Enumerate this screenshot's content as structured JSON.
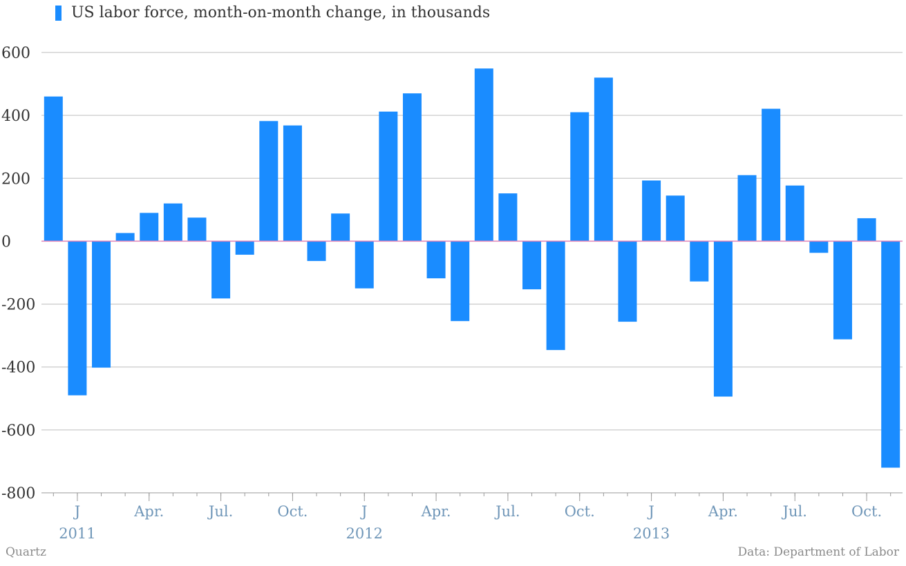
{
  "colors": {
    "bar": "#1a8cff",
    "grid": "#bdbdbd",
    "zero_line": "#e084b8",
    "y_tick_text": "#333333",
    "x_tick_text": "#6f96b8",
    "axis": "#999999"
  },
  "legend": {
    "label": "US labor force, month-on-month change, in thousands"
  },
  "footer": {
    "source_left": "Quartz",
    "source_right": "Data: Department of Labor"
  },
  "chart_data": {
    "type": "bar",
    "title": "",
    "xlabel": "",
    "ylabel": "",
    "ylim": [
      -800,
      600
    ],
    "y_ticks": [
      600,
      400,
      200,
      0,
      -200,
      -400,
      -600,
      -800
    ],
    "grid": true,
    "legend_position": "top-left",
    "categories": [
      "2010-12",
      "2011-01",
      "2011-02",
      "2011-03",
      "2011-04",
      "2011-05",
      "2011-06",
      "2011-07",
      "2011-08",
      "2011-09",
      "2011-10",
      "2011-11",
      "2011-12",
      "2012-01",
      "2012-02",
      "2012-03",
      "2012-04",
      "2012-05",
      "2012-06",
      "2012-07",
      "2012-08",
      "2012-09",
      "2012-10",
      "2012-11",
      "2012-12",
      "2013-01",
      "2013-02",
      "2013-03",
      "2013-04",
      "2013-05",
      "2013-06",
      "2013-07",
      "2013-08",
      "2013-09",
      "2013-10",
      "2013-11"
    ],
    "series": [
      {
        "name": "US labor force, month-on-month change, in thousands",
        "values": [
          460,
          -490,
          -402,
          26,
          90,
          120,
          75,
          -182,
          -43,
          382,
          368,
          -63,
          88,
          -150,
          412,
          470,
          -118,
          -254,
          549,
          152,
          -153,
          -346,
          410,
          520,
          -256,
          193,
          145,
          -128,
          -494,
          210,
          421,
          177,
          -37,
          -312,
          73,
          -720
        ]
      }
    ],
    "x_tick_labels": [
      {
        "label": "J",
        "index": 1
      },
      {
        "label": "Apr.",
        "index": 4
      },
      {
        "label": "Jul.",
        "index": 7
      },
      {
        "label": "Oct.",
        "index": 10
      },
      {
        "label": "J",
        "index": 13
      },
      {
        "label": "Apr.",
        "index": 16
      },
      {
        "label": "Jul.",
        "index": 19
      },
      {
        "label": "Oct.",
        "index": 22
      },
      {
        "label": "J",
        "index": 25
      },
      {
        "label": "Apr.",
        "index": 28
      },
      {
        "label": "Jul.",
        "index": 31
      },
      {
        "label": "Oct.",
        "index": 34
      }
    ],
    "year_labels": [
      {
        "label": "2011",
        "index": 1
      },
      {
        "label": "2012",
        "index": 13
      },
      {
        "label": "2013",
        "index": 25
      }
    ]
  }
}
